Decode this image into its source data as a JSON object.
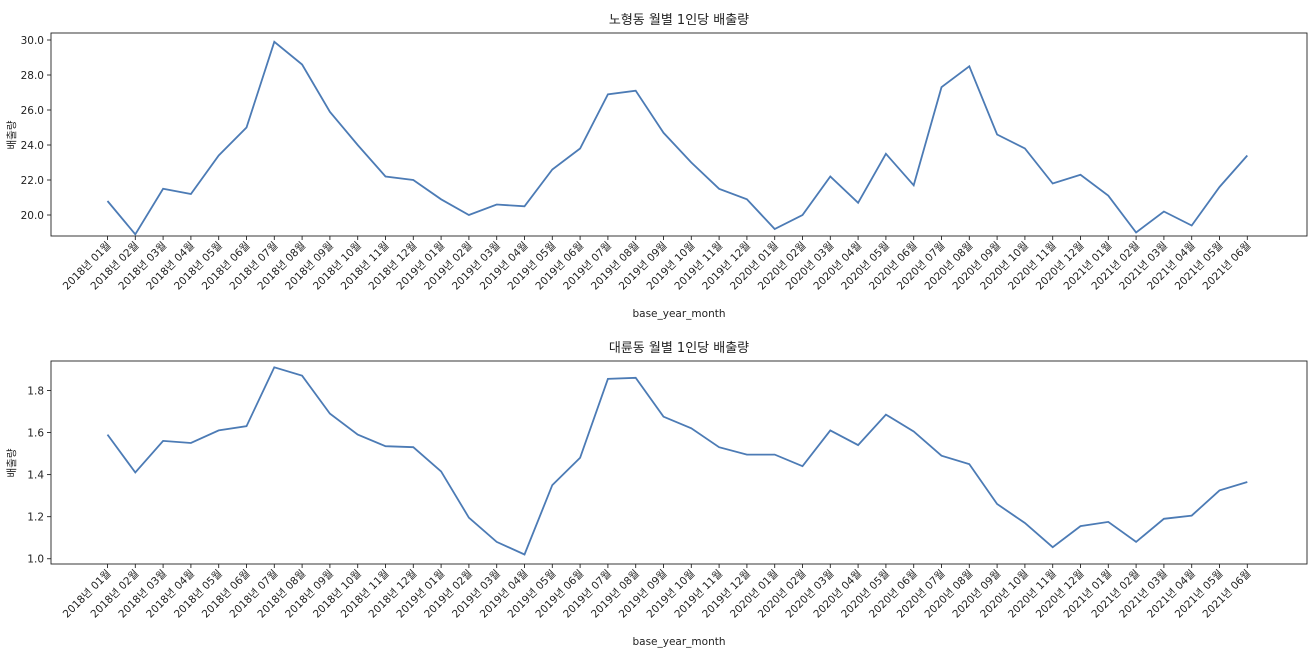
{
  "chart_data": [
    {
      "type": "line",
      "title": "노형동 월별 1인당 배출량",
      "xlabel": "base_year_month",
      "ylabel": "배출량",
      "ylim": [
        18.8,
        30.4
      ],
      "yticks": [
        "20.0",
        "22.0",
        "24.0",
        "26.0",
        "28.0",
        "30.0"
      ],
      "ytick_values": [
        20,
        22,
        24,
        26,
        28,
        30
      ],
      "grid": false,
      "line_color": "#4c7bb5",
      "categories": [
        "2018년 01월",
        "2018년 02월",
        "2018년 03월",
        "2018년 04월",
        "2018년 05월",
        "2018년 06월",
        "2018년 07월",
        "2018년 08월",
        "2018년 09월",
        "2018년 10월",
        "2018년 11월",
        "2018년 12월",
        "2019년 01월",
        "2019년 02월",
        "2019년 03월",
        "2019년 04월",
        "2019년 05월",
        "2019년 06월",
        "2019년 07월",
        "2019년 08월",
        "2019년 09월",
        "2019년 10월",
        "2019년 11월",
        "2019년 12월",
        "2020년 01월",
        "2020년 02월",
        "2020년 03월",
        "2020년 04월",
        "2020년 05월",
        "2020년 06월",
        "2020년 07월",
        "2020년 08월",
        "2020년 09월",
        "2020년 10월",
        "2020년 11월",
        "2020년 12월",
        "2021년 01월",
        "2021년 02월",
        "2021년 03월",
        "2021년 04월",
        "2021년 05월",
        "2021년 06월"
      ],
      "values": [
        20.8,
        18.9,
        21.5,
        21.2,
        23.4,
        25.0,
        29.9,
        28.6,
        25.9,
        24.0,
        22.2,
        22.0,
        20.9,
        20.0,
        20.6,
        20.5,
        22.6,
        23.8,
        26.9,
        27.1,
        24.7,
        23.0,
        21.5,
        20.9,
        19.2,
        20.0,
        22.2,
        20.7,
        23.5,
        21.7,
        27.3,
        28.5,
        24.6,
        23.8,
        21.8,
        22.3,
        21.1,
        19.0,
        20.2,
        19.4,
        21.6,
        23.4
      ]
    },
    {
      "type": "line",
      "title": "대륜동 월별 1인당 배출량",
      "xlabel": "base_year_month",
      "ylabel": "배출량",
      "ylim": [
        0.975,
        1.94
      ],
      "yticks": [
        "1.0",
        "1.2",
        "1.4",
        "1.6",
        "1.8"
      ],
      "ytick_values": [
        1.0,
        1.2,
        1.4,
        1.6,
        1.8
      ],
      "grid": false,
      "line_color": "#4c7bb5",
      "categories": [
        "2018년 01월",
        "2018년 02월",
        "2018년 03월",
        "2018년 04월",
        "2018년 05월",
        "2018년 06월",
        "2018년 07월",
        "2018년 08월",
        "2018년 09월",
        "2018년 10월",
        "2018년 11월",
        "2018년 12월",
        "2019년 01월",
        "2019년 02월",
        "2019년 03월",
        "2019년 04월",
        "2019년 05월",
        "2019년 06월",
        "2019년 07월",
        "2019년 08월",
        "2019년 09월",
        "2019년 10월",
        "2019년 11월",
        "2019년 12월",
        "2020년 01월",
        "2020년 02월",
        "2020년 03월",
        "2020년 04월",
        "2020년 05월",
        "2020년 06월",
        "2020년 07월",
        "2020년 08월",
        "2020년 09월",
        "2020년 10월",
        "2020년 11월",
        "2020년 12월",
        "2021년 01월",
        "2021년 02월",
        "2021년 03월",
        "2021년 04월",
        "2021년 05월",
        "2021년 06월"
      ],
      "values": [
        1.59,
        1.41,
        1.56,
        1.55,
        1.61,
        1.63,
        1.91,
        1.87,
        1.69,
        1.59,
        1.535,
        1.53,
        1.415,
        1.195,
        1.08,
        1.02,
        1.35,
        1.48,
        1.855,
        1.86,
        1.675,
        1.62,
        1.53,
        1.495,
        1.495,
        1.44,
        1.61,
        1.54,
        1.685,
        1.605,
        1.49,
        1.45,
        1.26,
        1.17,
        1.055,
        1.155,
        1.175,
        1.08,
        1.19,
        1.205,
        1.325,
        1.365
      ]
    }
  ]
}
